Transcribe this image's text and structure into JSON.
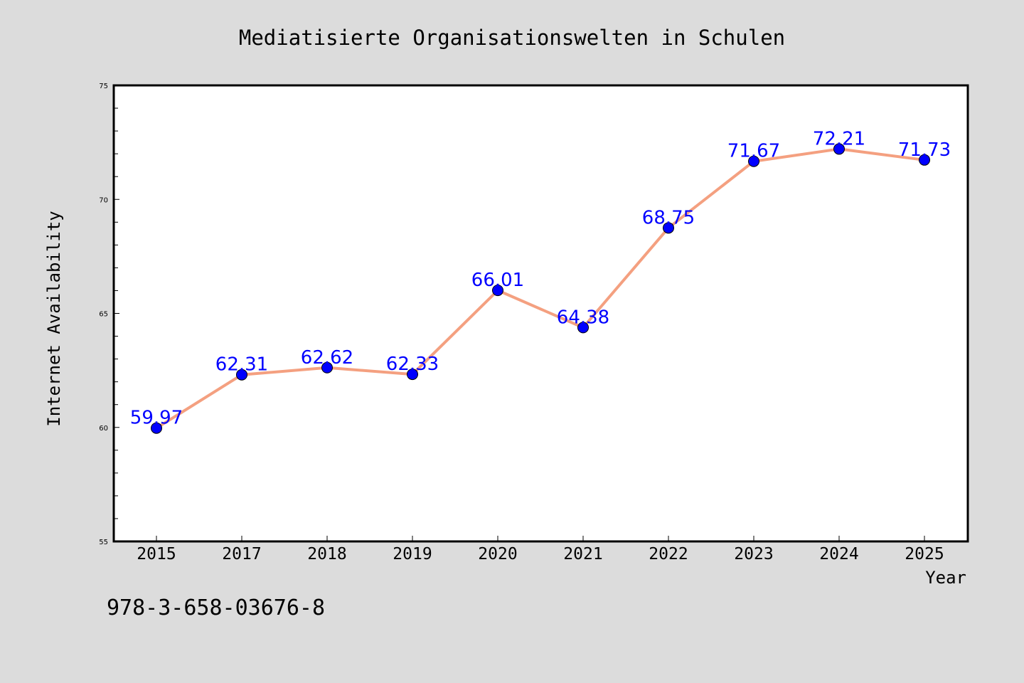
{
  "chart_data": {
    "type": "line",
    "title": "Mediatisierte Organisationswelten in Schulen",
    "xlabel": "Year",
    "ylabel": "Internet Availability",
    "categories": [
      "2015",
      "2017",
      "2018",
      "2019",
      "2020",
      "2021",
      "2022",
      "2023",
      "2024",
      "2025"
    ],
    "series": [
      {
        "values": [
          59.97,
          62.31,
          62.62,
          62.33,
          66.01,
          64.38,
          68.75,
          71.67,
          72.21,
          71.73
        ],
        "labels": [
          "59.97",
          "62.31",
          "62.62",
          "62.33",
          "66.01",
          "64.38",
          "68.75",
          "71.67",
          "72.21",
          "71.73"
        ],
        "line_color": "#f4a080",
        "marker_color": "#0000ff"
      }
    ],
    "ylim": [
      55,
      75
    ],
    "yticks": [
      55,
      60,
      65,
      70,
      75
    ],
    "grid": false,
    "legend": "none"
  },
  "footer": {
    "isbn": "978-3-658-03676-8"
  },
  "colors": {
    "background": "#dcdcdc",
    "plot_background": "#ffffff",
    "label_color": "#0000ff"
  }
}
